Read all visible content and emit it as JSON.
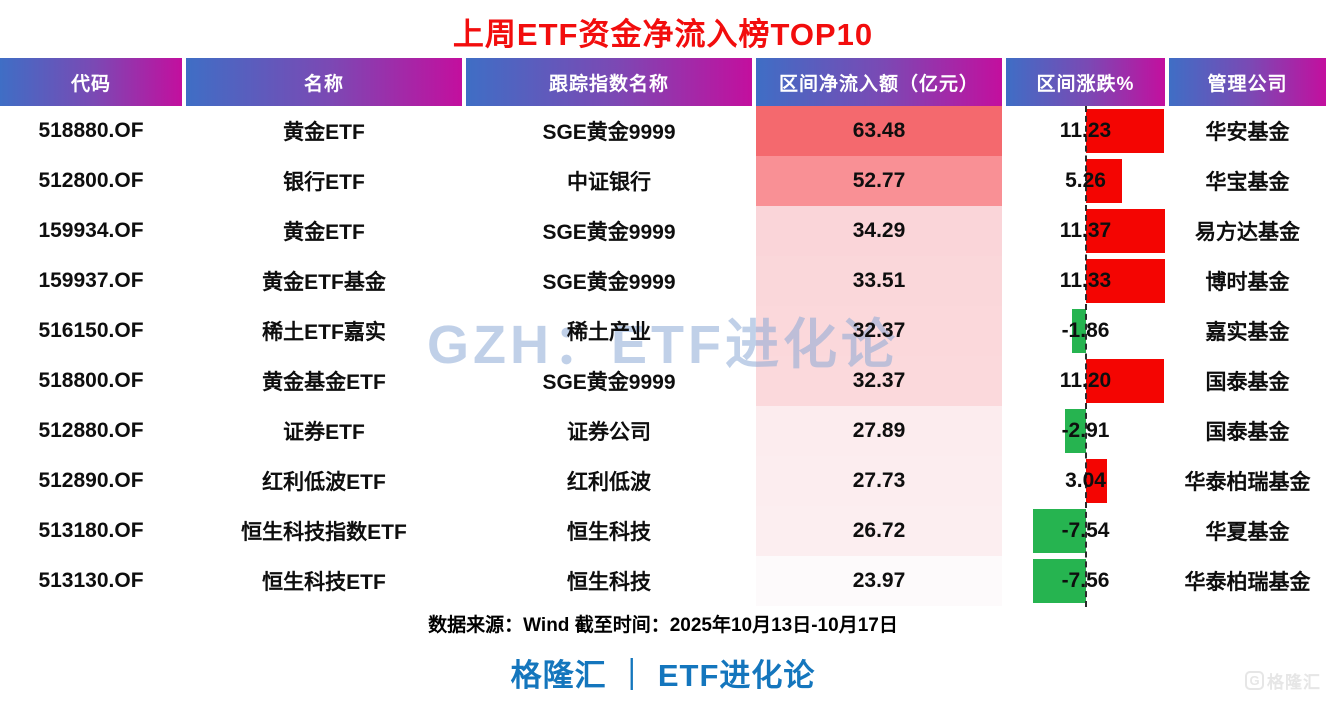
{
  "title": {
    "text": "上周ETF资金净流入榜TOP10",
    "color": "#f20d0d"
  },
  "chart_data": {
    "type": "table",
    "columns": [
      "代码",
      "名称",
      "跟踪指数名称",
      "区间净流入额（亿元）",
      "区间涨跌%",
      "管理公司"
    ],
    "rows": [
      {
        "code": "518880.OF",
        "name": "黄金ETF",
        "index": "SGE黄金9999",
        "flow": "63.48",
        "change": "11.23",
        "company": "华安基金",
        "fill": "#f4696e"
      },
      {
        "code": "512800.OF",
        "name": "银行ETF",
        "index": "中证银行",
        "flow": "52.77",
        "change": "5.26",
        "company": "华宝基金",
        "fill": "#f99095"
      },
      {
        "code": "159934.OF",
        "name": "黄金ETF",
        "index": "SGE黄金9999",
        "flow": "34.29",
        "change": "11.37",
        "company": "易方达基金",
        "fill": "#fad5d9"
      },
      {
        "code": "159937.OF",
        "name": "黄金ETF基金",
        "index": "SGE黄金9999",
        "flow": "33.51",
        "change": "11.33",
        "company": "博时基金",
        "fill": "#fad7da"
      },
      {
        "code": "516150.OF",
        "name": "稀土ETF嘉实",
        "index": "稀土产业",
        "flow": "32.37",
        "change": "-1.86",
        "company": "嘉实基金",
        "fill": "#fbd8db"
      },
      {
        "code": "518800.OF",
        "name": "黄金基金ETF",
        "index": "SGE黄金9999",
        "flow": "32.37",
        "change": "11.20",
        "company": "国泰基金",
        "fill": "#fbd9dc"
      },
      {
        "code": "512880.OF",
        "name": "证券ETF",
        "index": "证券公司",
        "flow": "27.89",
        "change": "-2.91",
        "company": "国泰基金",
        "fill": "#fcecee"
      },
      {
        "code": "512890.OF",
        "name": "红利低波ETF",
        "index": "红利低波",
        "flow": "27.73",
        "change": "3.04",
        "company": "华泰柏瑞基金",
        "fill": "#fcedef"
      },
      {
        "code": "513180.OF",
        "name": "恒生科技指数ETF",
        "index": "恒生科技",
        "flow": "26.72",
        "change": "-7.54",
        "company": "华夏基金",
        "fill": "#fceef0"
      },
      {
        "code": "513130.OF",
        "name": "恒生科技ETF",
        "index": "恒生科技",
        "flow": "23.97",
        "change": "-7.56",
        "company": "华泰柏瑞基金",
        "fill": "#fdfafb"
      }
    ],
    "bar_colors": {
      "positive": "#f40502",
      "negative": "#26b450"
    },
    "header_gradient": [
      "#3f6ec5",
      "#c30f9e"
    ],
    "layout_hints": {
      "legend": "none",
      "grid": "off",
      "change_axis": "center-zero, red right positive, green left negative"
    }
  },
  "watermark": {
    "text": "GZH：ETF进化论"
  },
  "footer": {
    "source": "数据来源：Wind 截至时间：2025年10月13日-10月17日",
    "brand": "格隆汇 ｜ ETF进化论"
  },
  "corner_logo": {
    "icon": "G",
    "text": "格隆汇"
  }
}
